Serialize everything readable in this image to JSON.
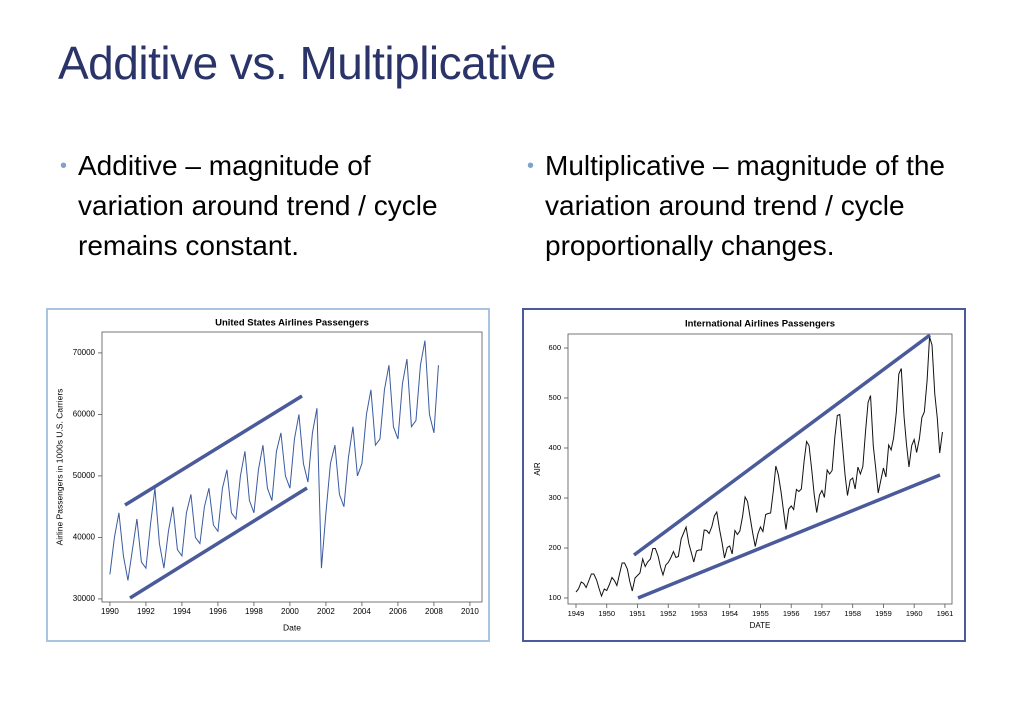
{
  "title": "Additive vs. Multiplicative",
  "bullets": [
    "Additive – magnitude of variation around trend / cycle remains constant.",
    "Multiplicative – magnitude of the variation around trend / cycle proportionally changes."
  ],
  "chart_data": [
    {
      "type": "line",
      "title": "United States Airlines Passengers",
      "x_label": "Date",
      "y_label": "Airline Passengers in 1000s U.S. Carriers",
      "color": "#3a5aa0",
      "x": [
        1990,
        1990.25,
        1990.5,
        1990.75,
        1991,
        1991.25,
        1991.5,
        1991.75,
        1992,
        1992.25,
        1992.5,
        1992.75,
        1993,
        1993.25,
        1993.5,
        1993.75,
        1994,
        1994.25,
        1994.5,
        1994.75,
        1995,
        1995.25,
        1995.5,
        1995.75,
        1996,
        1996.25,
        1996.5,
        1996.75,
        1997,
        1997.25,
        1997.5,
        1997.75,
        1998,
        1998.25,
        1998.5,
        1998.75,
        1999,
        1999.25,
        1999.5,
        1999.75,
        2000,
        2000.25,
        2000.5,
        2000.75,
        2001,
        2001.25,
        2001.5,
        2001.75,
        2002,
        2002.25,
        2002.5,
        2002.75,
        2003,
        2003.25,
        2003.5,
        2003.75,
        2004,
        2004.25,
        2004.5,
        2004.75,
        2005,
        2005.25,
        2005.5,
        2005.75,
        2006,
        2006.25,
        2006.5,
        2006.75,
        2007,
        2007.25,
        2007.5,
        2007.75,
        2008,
        2008.25
      ],
      "values": [
        34000,
        40000,
        44000,
        37000,
        33000,
        38000,
        43000,
        36000,
        35000,
        42000,
        48000,
        39000,
        35000,
        41000,
        45000,
        38000,
        37000,
        44000,
        47000,
        40000,
        39000,
        45000,
        48000,
        42000,
        41000,
        48000,
        51000,
        44000,
        43000,
        50000,
        54000,
        46000,
        44000,
        51000,
        55000,
        48000,
        46000,
        54000,
        57000,
        50000,
        48000,
        56000,
        60000,
        52000,
        49000,
        57000,
        61000,
        35000,
        44000,
        52000,
        55000,
        47000,
        45000,
        53000,
        58000,
        50000,
        52000,
        60000,
        64000,
        55000,
        56000,
        64000,
        68000,
        58000,
        56000,
        65000,
        69000,
        58000,
        59000,
        68000,
        72000,
        60000,
        57000,
        68000
      ],
      "xlim": [
        1989.56,
        2010.67
      ],
      "ylim": [
        29500,
        73400
      ],
      "xticks": [
        1990,
        1992,
        1994,
        1996,
        1998,
        2000,
        2002,
        2004,
        2006,
        2008,
        2010
      ],
      "yticks": [
        30000,
        40000,
        50000,
        60000,
        70000
      ]
    },
    {
      "type": "line",
      "title": "International Airlines Passengers",
      "x_label": "DATE",
      "y_label": "AIR",
      "color": "#111111",
      "x": [
        1949,
        1949.08,
        1949.17,
        1949.25,
        1949.33,
        1949.42,
        1949.5,
        1949.58,
        1949.67,
        1949.75,
        1949.83,
        1949.92,
        1950,
        1950.08,
        1950.17,
        1950.25,
        1950.33,
        1950.42,
        1950.5,
        1950.58,
        1950.67,
        1950.75,
        1950.83,
        1950.92,
        1951,
        1951.08,
        1951.17,
        1951.25,
        1951.33,
        1951.42,
        1951.5,
        1951.58,
        1951.67,
        1951.75,
        1951.83,
        1951.92,
        1952,
        1952.08,
        1952.17,
        1952.25,
        1952.33,
        1952.42,
        1952.5,
        1952.58,
        1952.67,
        1952.75,
        1952.83,
        1952.92,
        1953,
        1953.08,
        1953.17,
        1953.25,
        1953.33,
        1953.42,
        1953.5,
        1953.58,
        1953.67,
        1953.75,
        1953.83,
        1953.92,
        1954,
        1954.08,
        1954.17,
        1954.25,
        1954.33,
        1954.42,
        1954.5,
        1954.58,
        1954.67,
        1954.75,
        1954.83,
        1954.92,
        1955,
        1955.08,
        1955.17,
        1955.25,
        1955.33,
        1955.42,
        1955.5,
        1955.58,
        1955.67,
        1955.75,
        1955.83,
        1955.92,
        1956,
        1956.08,
        1956.17,
        1956.25,
        1956.33,
        1956.42,
        1956.5,
        1956.58,
        1956.67,
        1956.75,
        1956.83,
        1956.92,
        1957,
        1957.08,
        1957.17,
        1957.25,
        1957.33,
        1957.42,
        1957.5,
        1957.58,
        1957.67,
        1957.75,
        1957.83,
        1957.92,
        1958,
        1958.08,
        1958.17,
        1958.25,
        1958.33,
        1958.42,
        1958.5,
        1958.58,
        1958.67,
        1958.75,
        1958.83,
        1958.92,
        1959,
        1959.08,
        1959.17,
        1959.25,
        1959.33,
        1959.42,
        1959.5,
        1959.58,
        1959.67,
        1959.75,
        1959.83,
        1959.92,
        1960,
        1960.08,
        1960.17,
        1960.25,
        1960.33,
        1960.42,
        1960.5,
        1960.58,
        1960.67,
        1960.75,
        1960.83,
        1960.92
      ],
      "values": [
        112,
        118,
        132,
        129,
        121,
        135,
        148,
        148,
        136,
        119,
        104,
        118,
        115,
        126,
        141,
        135,
        125,
        149,
        170,
        170,
        158,
        133,
        114,
        140,
        145,
        150,
        178,
        163,
        172,
        178,
        199,
        199,
        184,
        162,
        146,
        166,
        171,
        180,
        193,
        181,
        183,
        218,
        230,
        242,
        209,
        191,
        172,
        194,
        196,
        196,
        236,
        235,
        229,
        243,
        264,
        272,
        237,
        211,
        180,
        201,
        204,
        188,
        235,
        227,
        234,
        264,
        302,
        293,
        259,
        229,
        203,
        229,
        242,
        233,
        267,
        269,
        270,
        315,
        364,
        347,
        312,
        274,
        237,
        278,
        284,
        277,
        317,
        313,
        318,
        374,
        413,
        405,
        355,
        306,
        271,
        306,
        315,
        301,
        356,
        348,
        355,
        422,
        465,
        467,
        404,
        347,
        305,
        336,
        340,
        318,
        362,
        348,
        363,
        435,
        491,
        505,
        404,
        359,
        310,
        337,
        360,
        342,
        406,
        396,
        420,
        472,
        548,
        559,
        463,
        407,
        362,
        405,
        417,
        391,
        419,
        461,
        472,
        535,
        622,
        606,
        508,
        461,
        390,
        432
      ],
      "xlim": [
        1948.74,
        1961.23
      ],
      "ylim": [
        88,
        628
      ],
      "xticks": [
        1949,
        1950,
        1951,
        1952,
        1953,
        1954,
        1955,
        1956,
        1957,
        1958,
        1959,
        1960,
        1961
      ],
      "yticks": [
        100,
        200,
        300,
        400,
        500,
        600
      ]
    }
  ]
}
